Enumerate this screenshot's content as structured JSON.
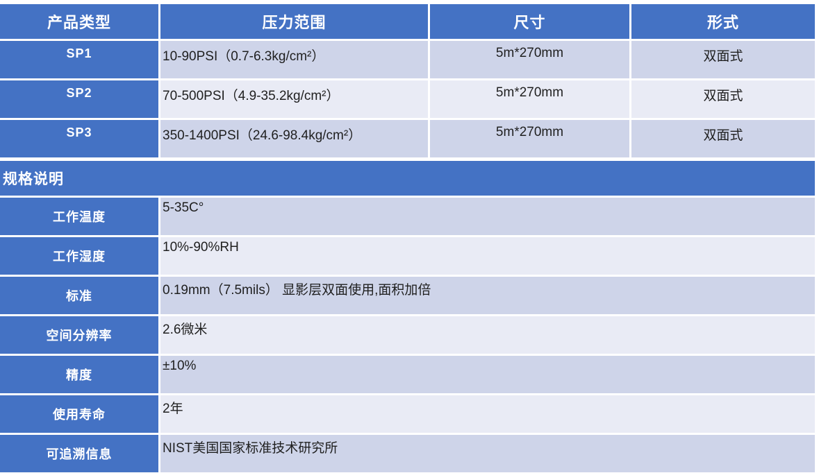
{
  "colors": {
    "header_blue": "#4472C4",
    "band_dark": "#CED4E9",
    "band_light": "#E9EBF5",
    "label_text": "#FFFFFF",
    "value_text": "#1F1F1F"
  },
  "product_table": {
    "columns": {
      "type": "产品类型",
      "pressure": "压力范围",
      "size": "尺寸",
      "form": "形式"
    },
    "rows": [
      {
        "type": "SP1",
        "pressure": "10-90PSI（0.7-6.3kg/cm²）",
        "size": "5m*270mm",
        "form": "双面式"
      },
      {
        "type": "SP2",
        "pressure": "70-500PSI（4.9-35.2kg/cm²）",
        "size": "5m*270mm",
        "form": "双面式"
      },
      {
        "type": "SP3",
        "pressure": "350-1400PSI（24.6-98.4kg/cm²）",
        "size": "5m*270mm",
        "form": "双面式"
      }
    ]
  },
  "spec_section": {
    "title": "规格说明",
    "rows": [
      {
        "label": "工作温度",
        "value": "5-35C°"
      },
      {
        "label": "工作湿度",
        "value": "10%-90%RH"
      },
      {
        "label": "标准",
        "value": "0.19mm（7.5mils） 显影层双面使用,面积加倍"
      },
      {
        "label": "空间分辨率",
        "value": "2.6微米"
      },
      {
        "label": "精度",
        "value": "±10%"
      },
      {
        "label": "使用寿命",
        "value": "2年"
      },
      {
        "label": "可追溯信息",
        "value": "NIST美国国家标准技术研究所"
      }
    ]
  }
}
